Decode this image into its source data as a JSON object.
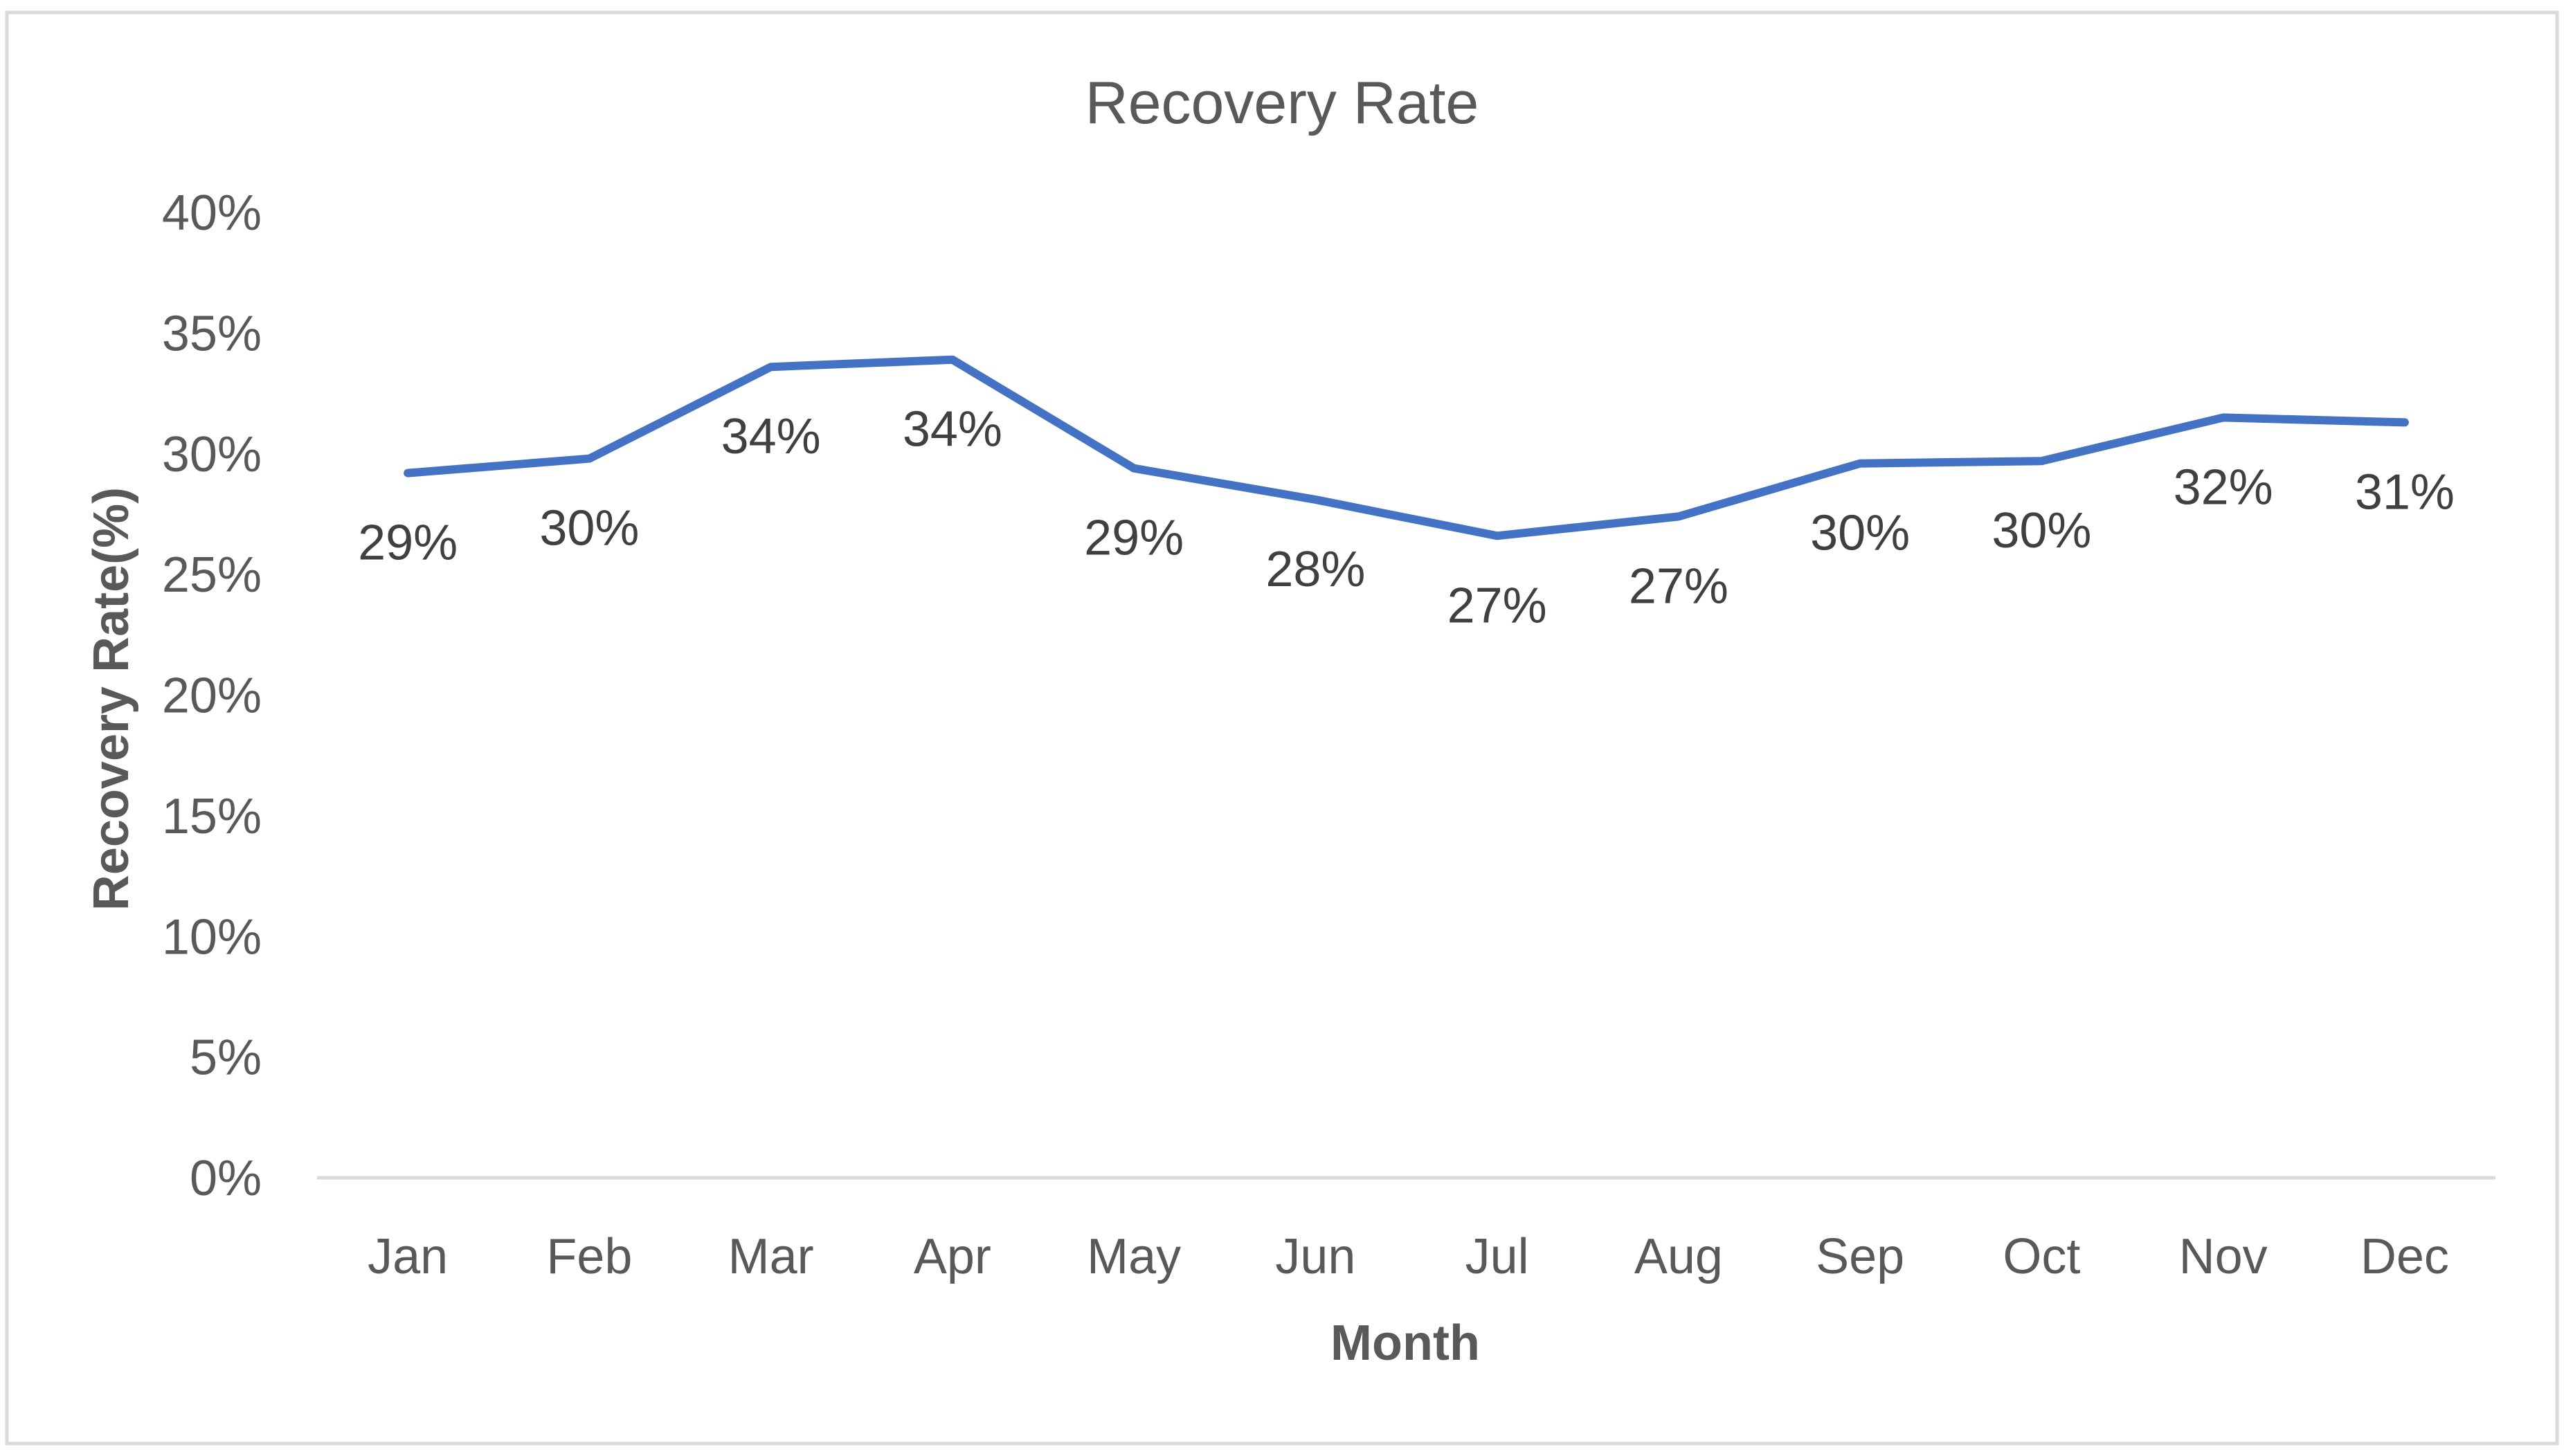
{
  "chart_data": {
    "type": "line",
    "title": "Recovery Rate",
    "xlabel": "Month",
    "ylabel": "Recovery Rate(%)",
    "categories": [
      "Jan",
      "Feb",
      "Mar",
      "Apr",
      "May",
      "Jun",
      "Jul",
      "Aug",
      "Sep",
      "Oct",
      "Nov",
      "Dec"
    ],
    "values": [
      29.2,
      29.8,
      33.6,
      33.9,
      29.4,
      28.1,
      26.6,
      27.4,
      29.6,
      29.7,
      31.5,
      31.3
    ],
    "data_labels": [
      "29%",
      "30%",
      "34%",
      "34%",
      "29%",
      "28%",
      "27%",
      "27%",
      "30%",
      "30%",
      "32%",
      "31%"
    ],
    "y_ticks": [
      "0%",
      "5%",
      "10%",
      "15%",
      "20%",
      "25%",
      "30%",
      "35%",
      "40%"
    ],
    "ylim": [
      0,
      40
    ],
    "grid": false,
    "legend": "none",
    "line_color": "#4472C4",
    "axis_color": "#D9D9D9",
    "frame_color": "#D9D9D9",
    "text_color": "#595959"
  }
}
